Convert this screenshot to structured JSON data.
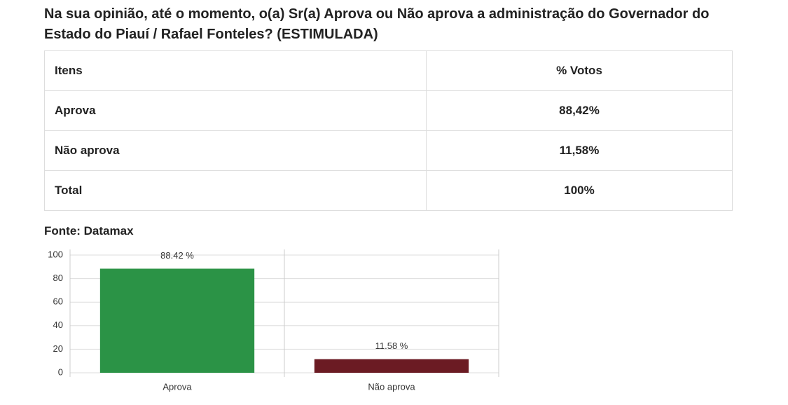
{
  "header": {
    "title": "Na sua opinião, até o momento, o(a) Sr(a) Aprova ou Não aprova a administração do Governador do Estado do Piauí / Rafael Fonteles? (ESTIMULADA)"
  },
  "table": {
    "columns": [
      "Itens",
      "% Votos"
    ],
    "rows": [
      [
        "Aprova",
        "88,42%"
      ],
      [
        "Não aprova",
        "11,58%"
      ],
      [
        "Total",
        "100%"
      ]
    ]
  },
  "source": "Fonte: Datamax",
  "chart_data": {
    "type": "bar",
    "categories": [
      "Aprova",
      "Não aprova"
    ],
    "values": [
      88.42,
      11.58
    ],
    "value_labels": [
      "88.42 %",
      "11.58 %"
    ],
    "colors": [
      "#2b9346",
      "#6b1b23"
    ],
    "ylim": [
      0,
      100
    ],
    "yticks": [
      0,
      20,
      40,
      60,
      80,
      100
    ],
    "grid": true
  }
}
